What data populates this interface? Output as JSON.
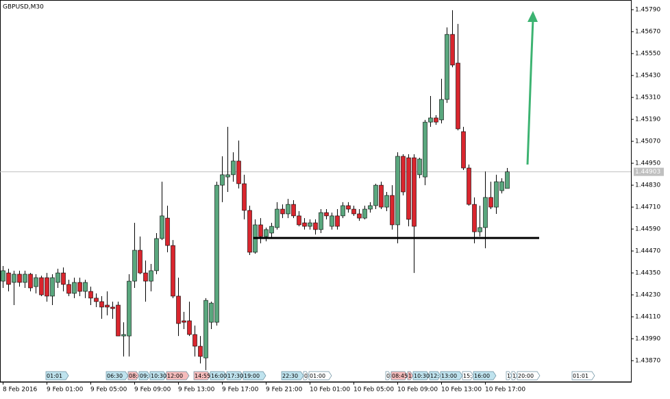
{
  "chart_data": {
    "type": "candlestick",
    "title": "GBPUSD,M30",
    "up_color": "#5aa77e",
    "down_color": "#d9262e",
    "categories": [
      "8 Feb 2016",
      null,
      null,
      null,
      null,
      null,
      null,
      null,
      "9 Feb 01:00",
      null,
      null,
      null,
      null,
      null,
      null,
      null,
      "9 Feb 05:00",
      null,
      null,
      null,
      null,
      null,
      null,
      null,
      "9 Feb 09:00",
      null,
      null,
      null,
      null,
      null,
      null,
      null,
      "9 Feb 13:00",
      null,
      null,
      null,
      null,
      null,
      null,
      null,
      "9 Feb 17:00",
      null,
      null,
      null,
      null,
      null,
      null,
      null,
      "9 Feb 21:00",
      null,
      null,
      null,
      null,
      null,
      null,
      null,
      "10 Feb 01:00",
      null,
      null,
      null,
      null,
      null,
      null,
      null,
      "10 Feb 05:00",
      null,
      null,
      null,
      null,
      null,
      null,
      null,
      "10 Feb 09:00",
      null,
      null,
      null,
      null,
      null,
      null,
      null,
      "10 Feb 13:00",
      null,
      null,
      null,
      null,
      null,
      null,
      null,
      "10 Feb 17:00",
      null,
      null,
      null,
      null
    ],
    "open": [
      1.44305,
      1.4435,
      1.44298,
      1.44343,
      1.44298,
      1.44343,
      1.44275,
      1.44324,
      1.44324,
      1.44223,
      1.44298,
      1.4435,
      1.44287,
      1.44238,
      1.44298,
      1.44249,
      1.44249,
      1.44212,
      1.44193,
      1.44174,
      1.44163,
      1.44174,
      1.44005,
      1.44005,
      1.44305,
      1.44474,
      1.4435,
      1.44305,
      1.44362,
      1.44538,
      1.4465,
      1.445,
      1.44223,
      1.44088,
      1.44088,
      1.44013,
      1.43949,
      1.43885,
      1.4408,
      1.4408,
      1.4483,
      1.44875,
      1.44887,
      1.44962,
      1.44838,
      1.44692,
      1.44463,
      1.44613,
      1.44549,
      1.44568,
      1.44598,
      1.44699,
      1.44673,
      1.44725,
      1.44662,
      1.44624,
      1.44605,
      1.44624,
      1.44587,
      1.4468,
      1.44605,
      1.44662,
      1.44662,
      1.44718,
      1.44699,
      1.44673,
      1.4465,
      1.44699,
      1.44718,
      1.4483,
      1.4471,
      1.44774,
      1.44613,
      1.44988,
      1.4498,
      1.4498,
      1.44887,
      1.44875,
      1.45175,
      1.45198,
      1.45187,
      1.45299,
      1.45655,
      1.45498,
      1.45123,
      1.44924,
      1.44725,
      1.44575,
      1.44598,
      1.44763,
      1.4471,
      1.448,
      1.44812
    ],
    "high": [
      1.44388,
      1.44373,
      1.44362,
      1.44362,
      1.44362,
      1.4435,
      1.44343,
      1.44335,
      1.4435,
      1.44343,
      1.44373,
      1.4438,
      1.44313,
      1.44324,
      1.44324,
      1.44313,
      1.44275,
      1.44238,
      1.44223,
      1.44249,
      1.44193,
      1.44193,
      1.4408,
      1.44343,
      1.44624,
      1.44549,
      1.44418,
      1.44399,
      1.44568,
      1.44849,
      1.44718,
      1.4453,
      1.44324,
      1.44137,
      1.44193,
      1.44062,
      1.44005,
      1.44212,
      1.44193,
      1.44849,
      1.44988,
      1.45149,
      1.4501,
      1.45074,
      1.44887,
      1.44718,
      1.44643,
      1.4465,
      1.44598,
      1.44624,
      1.44737,
      1.44725,
      1.44755,
      1.44748,
      1.44688,
      1.4465,
      1.44643,
      1.44643,
      1.44699,
      1.44699,
      1.4468,
      1.44699,
      1.44737,
      1.44737,
      1.44718,
      1.44699,
      1.44718,
      1.44737,
      1.44838,
      1.44849,
      1.44793,
      1.4483,
      1.4501,
      1.44999,
      1.44999,
      1.44999,
      1.4498,
      1.45187,
      1.45318,
      1.45213,
      1.45412,
      1.45693,
      1.45787,
      1.45712,
      1.45149,
      1.44943,
      1.44763,
      1.44718,
      1.44905,
      1.44849,
      1.44887,
      1.44868,
      1.44924
    ],
    "low": [
      1.44268,
      1.44249,
      1.44174,
      1.44275,
      1.44268,
      1.44249,
      1.44238,
      1.44223,
      1.44193,
      1.44174,
      1.44268,
      1.44249,
      1.44223,
      1.44212,
      1.44223,
      1.44212,
      1.44174,
      1.44163,
      1.44099,
      1.44118,
      1.44099,
      1.44005,
      1.43893,
      1.43893,
      1.44268,
      1.44343,
      1.44193,
      1.44249,
      1.44343,
      1.4453,
      1.44463,
      1.44212,
      1.44005,
      1.44043,
      1.44005,
      1.43893,
      1.43855,
      1.43818,
      1.44043,
      1.44062,
      1.44737,
      1.44793,
      1.44849,
      1.44812,
      1.44643,
      1.44448,
      1.44455,
      1.44512,
      1.44523,
      1.44538,
      1.44587,
      1.4465,
      1.4465,
      1.4465,
      1.44605,
      1.44587,
      1.44587,
      1.4456,
      1.44568,
      1.44643,
      1.44587,
      1.44587,
      1.4465,
      1.4468,
      1.44662,
      1.44635,
      1.44643,
      1.4468,
      1.44699,
      1.44699,
      1.44688,
      1.44587,
      1.44512,
      1.44774,
      1.44605,
      1.4435,
      1.44868,
      1.4483,
      1.45149,
      1.4516,
      1.45168,
      1.4528,
      1.45475,
      1.4513,
      1.44913,
      1.44718,
      1.44512,
      1.44549,
      1.44485,
      1.44699,
      1.44673,
      1.44785,
      1.44812
    ],
    "close": [
      1.44362,
      1.44287,
      1.44343,
      1.44298,
      1.44343,
      1.44268,
      1.44324,
      1.4423,
      1.44223,
      1.44324,
      1.4435,
      1.44287,
      1.44238,
      1.44298,
      1.44249,
      1.44298,
      1.44212,
      1.44193,
      1.44163,
      1.44163,
      1.44155,
      1.44005,
      1.44013,
      1.44305,
      1.44474,
      1.4435,
      1.44305,
      1.44362,
      1.44538,
      1.44662,
      1.445,
      1.44223,
      1.44073,
      1.4408,
      1.44013,
      1.43949,
      1.43893,
      1.442,
      1.44185,
      1.4483,
      1.44887,
      1.44887,
      1.44962,
      1.44838,
      1.44692,
      1.44463,
      1.44613,
      1.44549,
      1.44587,
      1.44605,
      1.44699,
      1.44673,
      1.44725,
      1.44662,
      1.44613,
      1.44605,
      1.44624,
      1.44587,
      1.4468,
      1.44662,
      1.44662,
      1.44605,
      1.44718,
      1.44699,
      1.44673,
      1.4465,
      1.44699,
      1.44718,
      1.4483,
      1.4471,
      1.44774,
      1.44613,
      1.44988,
      1.44793,
      1.44643,
      1.44605,
      1.44973,
      1.45175,
      1.45198,
      1.45175,
      1.45299,
      1.45655,
      1.45487,
      1.45138,
      1.44924,
      1.44725,
      1.44575,
      1.44598,
      1.44763,
      1.4471,
      1.44849,
      1.44849,
      1.44903
    ],
    "ylim": [
      1.43754,
      1.45843
    ],
    "yticks": [
      {
        "value": 1.4579,
        "label": "1.45790"
      },
      {
        "value": 1.4567,
        "label": "1.45670"
      },
      {
        "value": 1.4555,
        "label": "1.45550"
      },
      {
        "value": 1.4543,
        "label": "1.45430"
      },
      {
        "value": 1.4531,
        "label": "1.45310"
      },
      {
        "value": 1.4519,
        "label": "1.45190"
      },
      {
        "value": 1.4507,
        "label": "1.45070"
      },
      {
        "value": 1.4495,
        "label": "1.44950"
      },
      {
        "value": 1.4483,
        "label": "1.44830"
      },
      {
        "value": 1.4471,
        "label": "1.44710"
      },
      {
        "value": 1.4459,
        "label": "1.44590"
      },
      {
        "value": 1.4447,
        "label": "1.44470"
      },
      {
        "value": 1.4435,
        "label": "1.44350"
      },
      {
        "value": 1.4423,
        "label": "1.44230"
      },
      {
        "value": 1.4411,
        "label": "1.44110"
      },
      {
        "value": 1.4399,
        "label": "1.43990"
      },
      {
        "value": 1.4387,
        "label": "1.43870"
      }
    ],
    "last_price": 1.44903,
    "support_level": 1.44541,
    "event_tags": [
      "01:01",
      "06:30",
      "08:",
      "09:",
      "10:30",
      "12:00",
      "14:55",
      "16:00",
      "17:30",
      "19:00",
      "22:30",
      "0",
      "01:00",
      "0",
      "08:45",
      "1",
      "10:30",
      "12:",
      "13:00",
      "15:",
      "16:00",
      "1",
      "1",
      "20:00",
      "01:01"
    ]
  }
}
